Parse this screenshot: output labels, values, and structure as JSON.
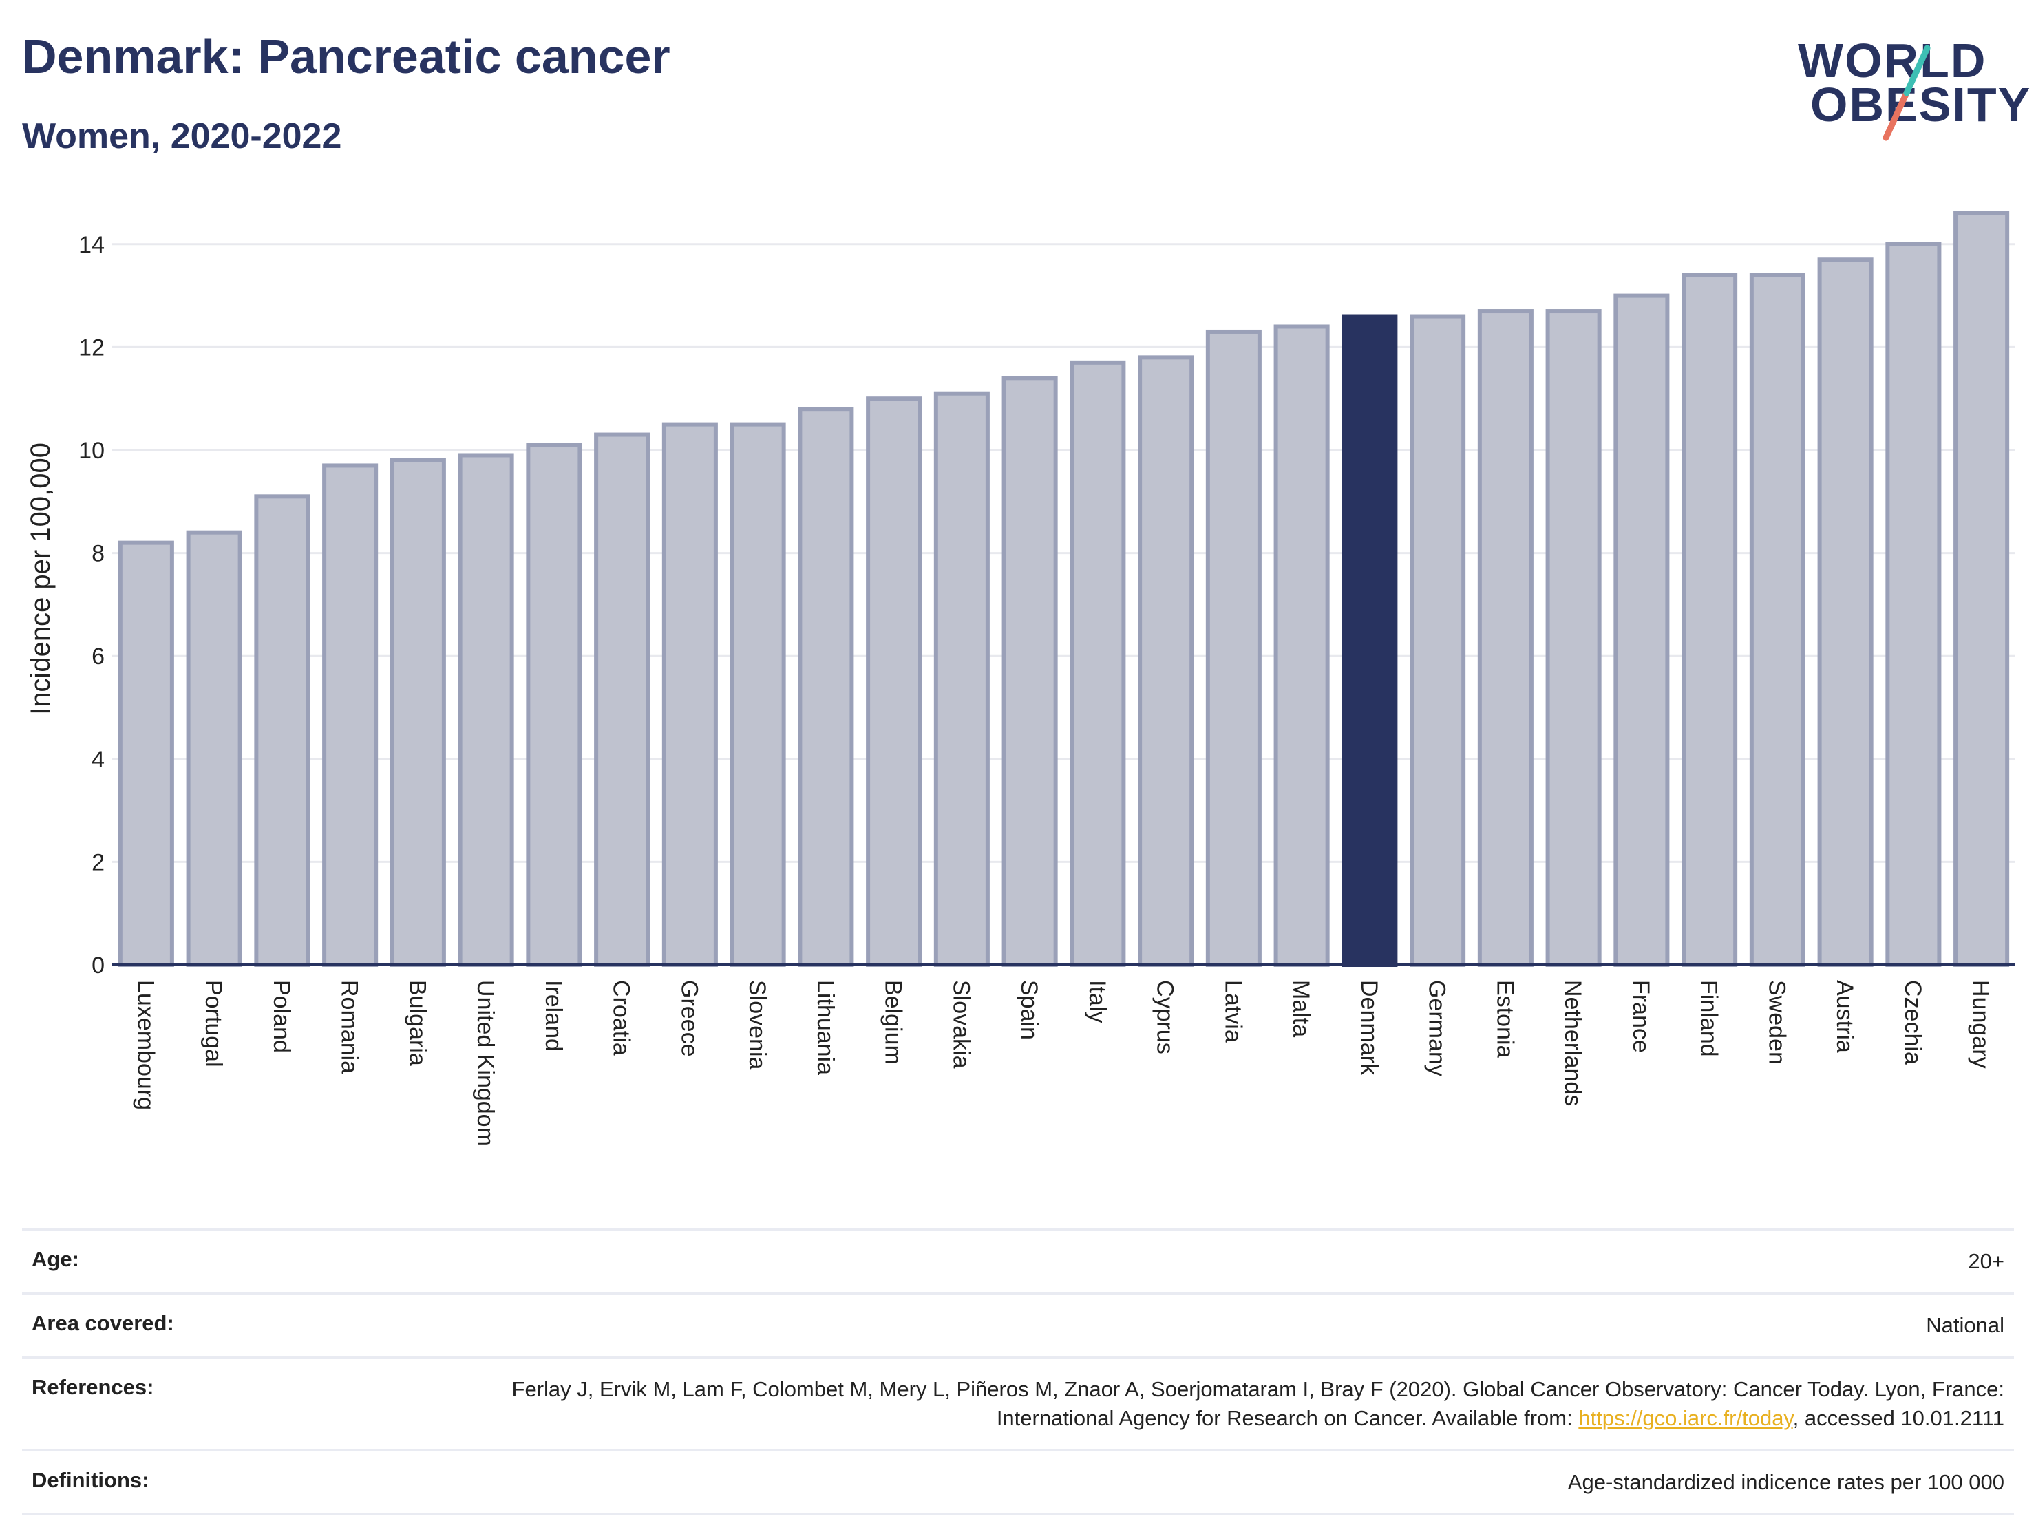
{
  "header": {
    "title": "Denmark: Pancreatic cancer",
    "subtitle": "Women, 2020-2022"
  },
  "logo": {
    "line1": "WORLD",
    "line2": "OBESITY",
    "accent_colors": [
      "#3dbfb4",
      "#e8735f"
    ]
  },
  "colors": {
    "bar_default_fill": "#bfc2cf",
    "bar_default_stroke": "#9aa0b8",
    "bar_highlight": "#283360",
    "gridline": "#e8e9ee",
    "axis": "#283360"
  },
  "chart_data": {
    "type": "bar",
    "title": "",
    "xlabel": "",
    "ylabel": "Incidence per 100,000",
    "ylim": [
      0,
      15
    ],
    "yticks": [
      0,
      2,
      4,
      6,
      8,
      10,
      12,
      14
    ],
    "grid": true,
    "highlight": "Denmark",
    "categories": [
      "Luxembourg",
      "Portugal",
      "Poland",
      "Romania",
      "Bulgaria",
      "United Kingdom",
      "Ireland",
      "Croatia",
      "Greece",
      "Slovenia",
      "Lithuania",
      "Belgium",
      "Slovakia",
      "Spain",
      "Italy",
      "Cyprus",
      "Latvia",
      "Malta",
      "Denmark",
      "Germany",
      "Estonia",
      "Netherlands",
      "France",
      "Finland",
      "Sweden",
      "Austria",
      "Czechia",
      "Hungary"
    ],
    "values": [
      8.2,
      8.4,
      9.1,
      9.7,
      9.8,
      9.9,
      10.1,
      10.3,
      10.5,
      10.5,
      10.8,
      11.0,
      11.1,
      11.4,
      11.7,
      11.8,
      12.3,
      12.4,
      12.6,
      12.6,
      12.7,
      12.7,
      13.0,
      13.4,
      13.4,
      13.7,
      14.0,
      14.6
    ]
  },
  "meta": [
    {
      "label": "Age:",
      "value": "20+"
    },
    {
      "label": "Area covered:",
      "value": "National"
    },
    {
      "label": "References:",
      "value_pre": "Ferlay J, Ervik M, Lam F, Colombet M, Mery L, Piñeros M, Znaor A, Soerjomataram I, Bray F (2020). Global Cancer Observatory: Cancer Today. Lyon, France: International Agency for Research on Cancer. Available from: ",
      "link": "https://gco.iarc.fr/today",
      "value_post": ", accessed 10.01.2111"
    },
    {
      "label": "Definitions:",
      "value": "Age-standardized indicence rates per 100 000"
    }
  ]
}
